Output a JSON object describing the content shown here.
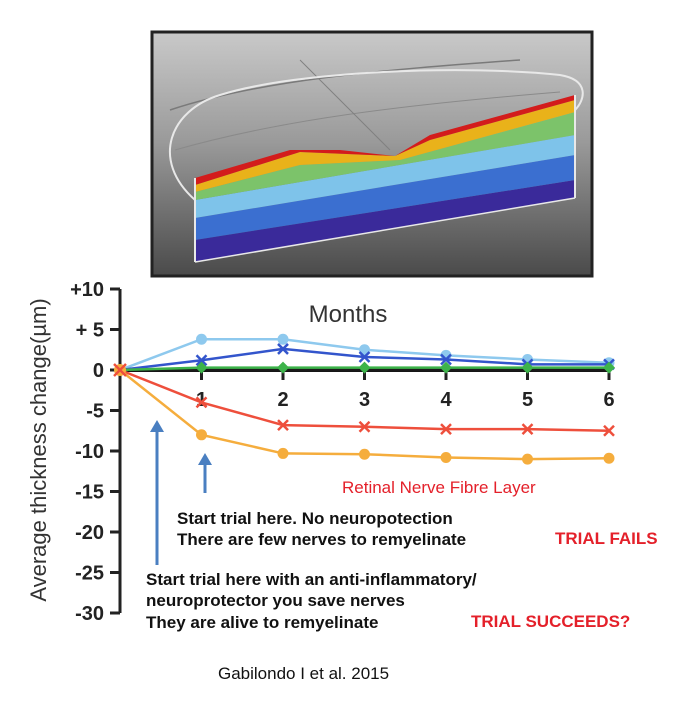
{
  "chart_data": {
    "type": "line",
    "ylabel": "Average thickness change(µm)",
    "xlabel": "Months",
    "x": [
      0,
      1,
      2,
      3,
      4,
      5,
      6
    ],
    "ylim": [
      -30,
      10
    ],
    "yticks": [
      "+10",
      "+ 5",
      "0",
      "-5",
      "-10",
      "-15",
      "-20",
      "-25",
      "-30"
    ],
    "ytick_values": [
      10,
      5,
      0,
      -5,
      -10,
      -15,
      -20,
      -25,
      -30
    ],
    "xticks": [
      "1",
      "2",
      "3",
      "4",
      "5",
      "6"
    ],
    "series": [
      {
        "color": "#8ec9ee",
        "marker": "circle",
        "values": [
          0,
          3.8,
          3.8,
          2.5,
          1.8,
          1.3,
          0.9
        ]
      },
      {
        "color": "#3355cc",
        "marker": "x",
        "values": [
          0,
          1.2,
          2.6,
          1.6,
          1.3,
          0.7,
          0.7
        ]
      },
      {
        "color": "#1a1a1a",
        "marker": "none",
        "values": [
          0,
          0,
          0,
          0,
          0,
          0,
          0
        ]
      },
      {
        "color": "#3db34a",
        "marker": "diamond",
        "values": [
          0,
          0.3,
          0.3,
          0.3,
          0.3,
          0.3,
          0.3
        ]
      },
      {
        "color": "#ee4f3c",
        "marker": "x",
        "values": [
          0,
          -4,
          -6.8,
          -7,
          -7.3,
          -7.3,
          -7.5
        ]
      },
      {
        "color": "#f5ad3d",
        "marker": "circle",
        "values": [
          0,
          -8,
          -10.3,
          -10.4,
          -10.8,
          -11,
          -10.9
        ]
      }
    ],
    "annotations": {
      "layer": "Retinal Nerve Fibre Layer",
      "late_line1": "Start trial here. No neuropotection",
      "late_line2": "There are few nerves to remyelinate",
      "late_verdict": "TRIAL FAILS",
      "early_line1": "Start trial here with an anti-inflammatory/",
      "early_line2": "neuroprotector  you save nerves",
      "early_line3": "They are alive  to remyelinate",
      "early_verdict": "TRIAL SUCCEEDS?",
      "citation": "Gabilondo I et al. 2015"
    }
  },
  "colors": {
    "arrow": "#4a7fc1"
  }
}
